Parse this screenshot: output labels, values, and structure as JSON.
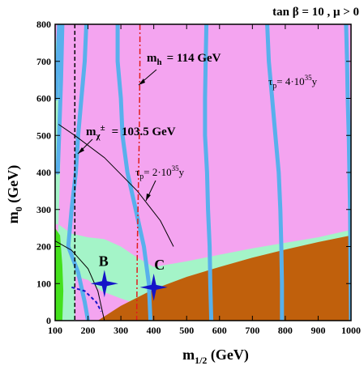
{
  "chart_data": {
    "type": "area",
    "title": "tan β = 10 ,  μ > 0",
    "xlabel": "m",
    "xlabel_sub": "1/2",
    "xlabel_unit": " (GeV)",
    "ylabel": "m",
    "ylabel_sub": "0",
    "ylabel_unit": " (GeV)",
    "xlim": [
      100,
      1000
    ],
    "ylim": [
      0,
      800
    ],
    "x_ticks": [
      "100",
      "200",
      "300",
      "400",
      "500",
      "600",
      "700",
      "800",
      "900",
      "1000"
    ],
    "y_ticks": [
      "0",
      "100",
      "200",
      "300",
      "400",
      "500",
      "600",
      "700",
      "800"
    ],
    "colors": {
      "allowed": "#f4a4f0",
      "stau_lsp": "#c0600c",
      "relic_band": "#a4f4c8",
      "bsg_excluded": "#44e01c",
      "proton_decay_contours": "#58b0ec",
      "higgs_line": "#e01c1c",
      "chargino_line": "#000000",
      "benchmark": "#1414c8"
    },
    "annotations": {
      "mh": {
        "symbol": "m",
        "sub": "h",
        "value": "= 114 GeV"
      },
      "mchi": {
        "symbol": "m",
        "sub": "χ",
        "sup": "±",
        "value": "= 103.5 GeV"
      },
      "tau1": {
        "symbol": "τ",
        "sub": "p",
        "value": "= 2·10",
        "exp": "35",
        "unit": "y"
      },
      "tau2": {
        "symbol": "τ",
        "sub": "p",
        "value": "= 4·10",
        "exp": "35",
        "unit": "y"
      }
    },
    "benchmarks": [
      {
        "label": "B",
        "x": 250,
        "y": 100
      },
      {
        "label": "C",
        "x": 400,
        "y": 90
      }
    ],
    "stau_boundary": [
      [
        230,
        0
      ],
      [
        300,
        40
      ],
      [
        400,
        85
      ],
      [
        500,
        118
      ],
      [
        600,
        145
      ],
      [
        700,
        170
      ],
      [
        800,
        192
      ],
      [
        900,
        212
      ],
      [
        1000,
        230
      ]
    ],
    "relic_band_upper": [
      [
        110,
        260
      ],
      [
        150,
        235
      ],
      [
        200,
        225
      ],
      [
        250,
        220
      ],
      [
        300,
        200
      ],
      [
        350,
        170
      ],
      [
        400,
        145
      ],
      [
        500,
        160
      ],
      [
        600,
        178
      ],
      [
        700,
        195
      ],
      [
        800,
        210
      ],
      [
        900,
        225
      ],
      [
        1000,
        245
      ]
    ],
    "proton_decay_contours": [
      [
        [
          112,
          800
        ],
        [
          108,
          700
        ],
        [
          103,
          600
        ]
      ],
      [
        [
          122,
          800
        ],
        [
          118,
          650
        ],
        [
          112,
          500
        ],
        [
          108,
          400
        ]
      ],
      [
        [
          195,
          800
        ],
        [
          190,
          700
        ],
        [
          180,
          600
        ],
        [
          170,
          500
        ],
        [
          163,
          400
        ],
        [
          150,
          300
        ],
        [
          140,
          200
        ],
        [
          170,
          130
        ],
        [
          190,
          50
        ],
        [
          200,
          0
        ]
      ],
      [
        [
          290,
          800
        ],
        [
          290,
          700
        ],
        [
          300,
          600
        ],
        [
          305,
          500
        ],
        [
          320,
          400
        ],
        [
          345,
          300
        ],
        [
          370,
          200
        ],
        [
          385,
          100
        ],
        [
          390,
          0
        ]
      ],
      [
        [
          560,
          800
        ],
        [
          558,
          700
        ],
        [
          556,
          600
        ],
        [
          556,
          500
        ],
        [
          562,
          400
        ],
        [
          565,
          300
        ],
        [
          570,
          200
        ],
        [
          572,
          100
        ],
        [
          575,
          0
        ]
      ],
      [
        [
          745,
          800
        ],
        [
          750,
          700
        ],
        [
          760,
          600
        ],
        [
          770,
          500
        ],
        [
          780,
          400
        ],
        [
          785,
          300
        ],
        [
          788,
          200
        ],
        [
          790,
          100
        ],
        [
          790,
          0
        ]
      ],
      [
        [
          985,
          800
        ],
        [
          988,
          700
        ],
        [
          990,
          600
        ],
        [
          993,
          500
        ],
        [
          995,
          400
        ],
        [
          997,
          300
        ],
        [
          998,
          200
        ],
        [
          999,
          100
        ],
        [
          1000,
          0
        ]
      ]
    ],
    "higgs_line": [
      [
        358,
        800
      ],
      [
        358,
        700
      ],
      [
        357,
        600
      ],
      [
        356,
        500
      ],
      [
        354,
        400
      ],
      [
        352,
        300
      ],
      [
        350,
        200
      ],
      [
        349,
        100
      ],
      [
        348,
        0
      ]
    ],
    "chargino_line": [
      [
        120,
        0
      ],
      [
        155,
        40
      ],
      [
        165,
        100
      ],
      [
        160,
        165
      ],
      [
        155,
        230
      ]
    ],
    "chargino_outer": [
      [
        110,
        530
      ],
      [
        160,
        500
      ],
      [
        250,
        440
      ],
      [
        350,
        350
      ],
      [
        420,
        270
      ],
      [
        460,
        200
      ]
    ],
    "chargino_inner": [
      [
        100,
        215
      ],
      [
        150,
        190
      ],
      [
        200,
        140
      ],
      [
        230,
        80
      ],
      [
        250,
        0
      ]
    ],
    "chargino_dashed": [
      [
        160,
        800
      ],
      [
        160,
        0
      ]
    ],
    "bsg_region": [
      [
        100,
        0
      ],
      [
        100,
        250
      ],
      [
        115,
        230
      ],
      [
        122,
        150
      ],
      [
        125,
        80
      ],
      [
        122,
        0
      ]
    ],
    "blue_dash": [
      [
        150,
        90
      ],
      [
        190,
        80
      ],
      [
        225,
        50
      ],
      [
        240,
        25
      ]
    ]
  }
}
